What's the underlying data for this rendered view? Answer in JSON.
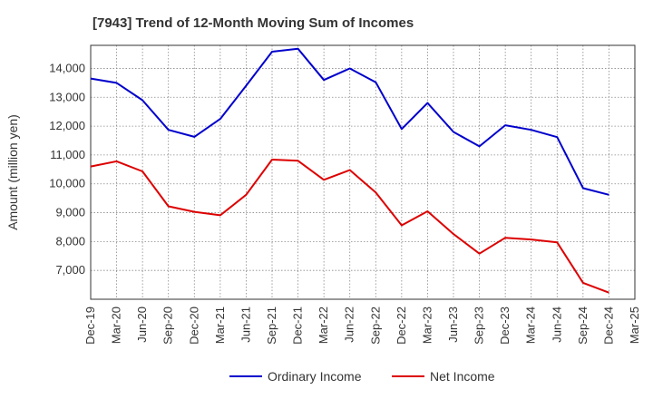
{
  "chart_data": {
    "type": "line",
    "title": "[7943]  Trend of 12-Month Moving Sum of Incomes",
    "xlabel": "",
    "ylabel": "Amount (million yen)",
    "ylim": [
      6000,
      14800
    ],
    "yticks": [
      7000,
      8000,
      9000,
      10000,
      11000,
      12000,
      13000,
      14000
    ],
    "ytick_labels": [
      "7,000",
      "8,000",
      "9,000",
      "10,000",
      "11,000",
      "12,000",
      "13,000",
      "14,000"
    ],
    "categories": [
      "Dec-19",
      "Mar-20",
      "Jun-20",
      "Sep-20",
      "Dec-20",
      "Mar-21",
      "Jun-21",
      "Sep-21",
      "Dec-21",
      "Mar-22",
      "Jun-22",
      "Sep-22",
      "Dec-22",
      "Mar-23",
      "Jun-23",
      "Sep-23",
      "Dec-23",
      "Mar-24",
      "Jun-24",
      "Sep-24",
      "Dec-24",
      "Mar-25"
    ],
    "grid": true,
    "legend_position": "bottom-center",
    "series": [
      {
        "name": "Ordinary Income",
        "color": "#0000cc",
        "values": [
          13650,
          13500,
          12900,
          11870,
          11630,
          12250,
          13400,
          14580,
          14680,
          13600,
          14000,
          13520,
          11900,
          12800,
          11800,
          11300,
          12030,
          11870,
          11620,
          9850,
          9620,
          null
        ]
      },
      {
        "name": "Net Income",
        "color": "#dd0000",
        "values": [
          10600,
          10780,
          10430,
          9220,
          9030,
          8910,
          9620,
          10840,
          10800,
          10140,
          10480,
          9700,
          8560,
          9050,
          8260,
          7580,
          8130,
          8070,
          7970,
          6570,
          6230,
          null
        ]
      }
    ]
  }
}
